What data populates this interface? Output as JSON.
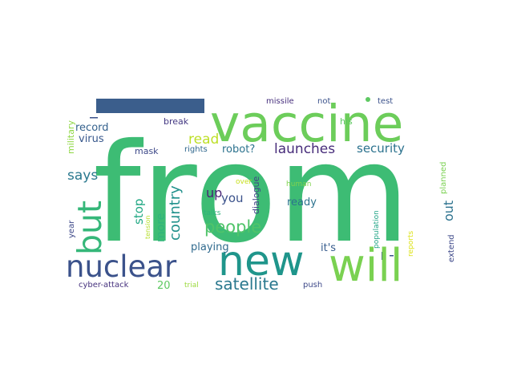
{
  "word_cloud": {
    "words": [
      {
        "text": "from",
        "color": "#3dbc74"
      },
      {
        "text": "vaccine",
        "color": "#6ccd5a"
      },
      {
        "text": "new",
        "color": "#1f958b"
      },
      {
        "text": "will",
        "color": "#7ad151"
      },
      {
        "text": "nuclear",
        "color": "#3b528b"
      },
      {
        "text": "but",
        "color": "#35b779"
      },
      {
        "text": "people",
        "color": "#50c46a"
      },
      {
        "text": "satellite",
        "color": "#2a788e"
      },
      {
        "text": "launches",
        "color": "#472c7a"
      },
      {
        "text": "security",
        "color": "#2c728e"
      },
      {
        "text": "country",
        "color": "#21918c"
      },
      {
        "text": "says",
        "color": "#2a788e"
      },
      {
        "text": "read",
        "color": "#bddf26"
      },
      {
        "text": "robot?",
        "color": "#2c728e"
      },
      {
        "text": "up",
        "color": "#482475"
      },
      {
        "text": "you",
        "color": "#3b528b"
      },
      {
        "text": "stop",
        "color": "#22a884"
      },
      {
        "text": "more",
        "color": "#2fb47c"
      },
      {
        "text": "out",
        "color": "#2c728e"
      },
      {
        "text": "playing",
        "color": "#306a8e"
      },
      {
        "text": "it's",
        "color": "#365c8d"
      },
      {
        "text": "20",
        "color": "#5ec962"
      },
      {
        "text": "dialogue",
        "color": "#414487"
      },
      {
        "text": "ready",
        "color": "#2c728e"
      },
      {
        "text": "record",
        "color": "#34618d"
      },
      {
        "text": "virus",
        "color": "#38588c"
      },
      {
        "text": "mask",
        "color": "#3e4989"
      },
      {
        "text": "rights",
        "color": "#31688e"
      },
      {
        "text": "break",
        "color": "#443983"
      },
      {
        "text": "his",
        "color": "#5ec962"
      },
      {
        "text": "military",
        "color": "#8fd744"
      },
      {
        "text": "year",
        "color": "#3e4989"
      },
      {
        "text": "missile",
        "color": "#472f7d"
      },
      {
        "text": "not",
        "color": "#3b528b"
      },
      {
        "text": "test",
        "color": "#3b528b"
      },
      {
        "text": "planned",
        "color": "#7ad151"
      },
      {
        "text": "extend",
        "color": "#3e4989"
      },
      {
        "text": "reports",
        "color": "#dde318"
      },
      {
        "text": "population",
        "color": "#20a486"
      },
      {
        "text": "human",
        "color": "#7fd34e"
      },
      {
        "text": "over",
        "color": "#c8e020"
      },
      {
        "text": "talks",
        "color": "#2fb47c"
      },
      {
        "text": "tension",
        "color": "#b5de2b"
      },
      {
        "text": "trial",
        "color": "#9bd93c"
      },
      {
        "text": "push",
        "color": "#3e4989"
      },
      {
        "text": "cyber-attack",
        "color": "#46327e"
      }
    ],
    "marks": [
      {
        "name": "bar-mark",
        "color": "#3b5e8c"
      },
      {
        "name": "dot-mark",
        "color": "#5ec962"
      },
      {
        "name": "tick-mark-pipe",
        "color": "#3b528b"
      },
      {
        "name": "tick-mark-dash",
        "color": "#3b528b"
      },
      {
        "name": "dash-mark-top",
        "color": "#3b528b"
      }
    ]
  }
}
